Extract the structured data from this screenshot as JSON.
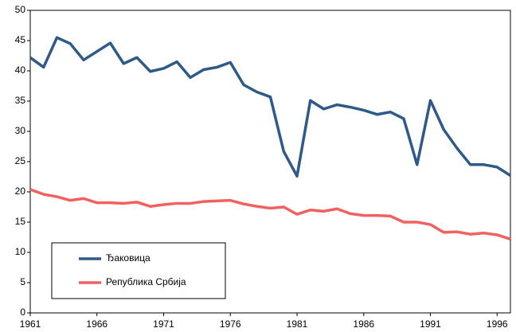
{
  "chart_data": {
    "type": "line",
    "x": [
      1961,
      1962,
      1963,
      1964,
      1965,
      1966,
      1967,
      1968,
      1969,
      1970,
      1971,
      1972,
      1973,
      1974,
      1975,
      1976,
      1977,
      1978,
      1979,
      1980,
      1981,
      1982,
      1983,
      1984,
      1985,
      1986,
      1987,
      1988,
      1989,
      1990,
      1991,
      1992,
      1993,
      1994,
      1995,
      1996,
      1997
    ],
    "series": [
      {
        "name": "Ђаковица",
        "color": "#2e5a8a",
        "values": [
          42.2,
          40.6,
          45.5,
          44.5,
          41.8,
          43.2,
          44.6,
          41.2,
          42.2,
          39.9,
          40.4,
          41.5,
          38.9,
          40.2,
          40.6,
          41.4,
          37.7,
          36.5,
          35.7,
          26.7,
          22.6,
          35.1,
          33.7,
          34.4,
          34.0,
          33.5,
          32.8,
          33.2,
          32.1,
          24.5,
          35.1,
          30.3,
          27.2,
          24.5,
          24.5,
          24.1,
          22.7
        ]
      },
      {
        "name": "Република Србија",
        "color": "#f26060",
        "values": [
          20.4,
          19.6,
          19.2,
          18.6,
          18.9,
          18.2,
          18.2,
          18.1,
          18.3,
          17.6,
          17.9,
          18.1,
          18.1,
          18.4,
          18.5,
          18.6,
          18.0,
          17.6,
          17.3,
          17.5,
          16.3,
          17.0,
          16.8,
          17.2,
          16.4,
          16.1,
          16.1,
          16.0,
          15.0,
          15.0,
          14.6,
          13.3,
          13.4,
          13.0,
          13.2,
          12.9,
          12.2
        ]
      }
    ],
    "xlim": [
      1961,
      1997
    ],
    "xticks": [
      1961,
      1966,
      1971,
      1976,
      1981,
      1986,
      1991,
      1996
    ],
    "ylim": [
      0,
      50
    ],
    "yticks": [
      0,
      5,
      10,
      15,
      20,
      25,
      30,
      35,
      40,
      45,
      50
    ],
    "grid": false,
    "legend": "lower left"
  }
}
